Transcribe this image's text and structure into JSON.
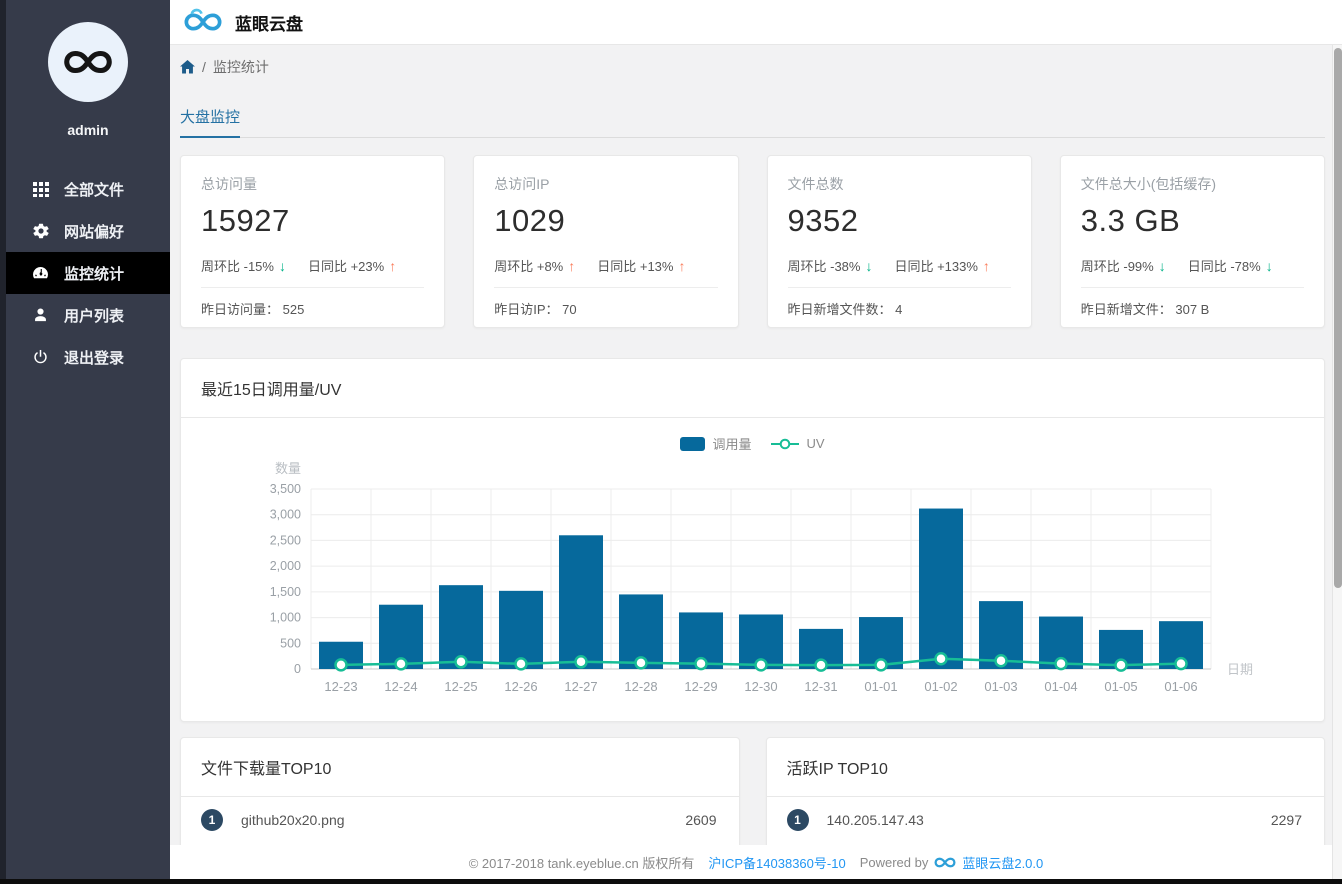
{
  "app": {
    "title": "蓝眼云盘"
  },
  "sidebar": {
    "username": "admin",
    "items": [
      {
        "id": "all-files",
        "label": "全部文件",
        "icon": "grid-icon",
        "active": false
      },
      {
        "id": "preferences",
        "label": "网站偏好",
        "icon": "gear-icon",
        "active": false
      },
      {
        "id": "monitoring",
        "label": "监控统计",
        "icon": "gauge-icon",
        "active": true
      },
      {
        "id": "users",
        "label": "用户列表",
        "icon": "user-icon",
        "active": false
      },
      {
        "id": "logout",
        "label": "退出登录",
        "icon": "power-icon",
        "active": false
      }
    ]
  },
  "breadcrumb": {
    "separator": "/",
    "current": "监控统计"
  },
  "tabs": [
    {
      "label": "大盘监控",
      "active": true
    }
  ],
  "stat_cards": [
    {
      "label": "总访问量",
      "value": "15927",
      "trends": [
        {
          "text": "周环比 -15%",
          "dir": "down"
        },
        {
          "text": "日同比 +23%",
          "dir": "up"
        }
      ],
      "bottom_label": "昨日访问量：",
      "bottom_value": "525"
    },
    {
      "label": "总访问IP",
      "value": "1029",
      "trends": [
        {
          "text": "周环比 +8%",
          "dir": "up"
        },
        {
          "text": "日同比 +13%",
          "dir": "up"
        }
      ],
      "bottom_label": "昨日访IP：",
      "bottom_value": "70"
    },
    {
      "label": "文件总数",
      "value": "9352",
      "trends": [
        {
          "text": "周环比 -38%",
          "dir": "down"
        },
        {
          "text": "日同比 +133%",
          "dir": "up"
        }
      ],
      "bottom_label": "昨日新增文件数：",
      "bottom_value": "4"
    },
    {
      "label": "文件总大小(包括缓存)",
      "value": "3.3 GB",
      "trends": [
        {
          "text": "周环比 -99%",
          "dir": "down"
        },
        {
          "text": "日同比 -78%",
          "dir": "down"
        }
      ],
      "bottom_label": "昨日新增文件：",
      "bottom_value": "307 B"
    }
  ],
  "chart_card": {
    "title": "最近15日调用量/UV"
  },
  "chart_data": {
    "type": "bar",
    "title": "最近15日调用量/UV",
    "xlabel": "日期",
    "ylabel": "数量",
    "ylim": [
      0,
      3500
    ],
    "yticks": [
      0,
      500,
      1000,
      1500,
      2000,
      2500,
      3000,
      3500
    ],
    "grid": true,
    "legend_position": "top-center",
    "categories": [
      "12-23",
      "12-24",
      "12-25",
      "12-26",
      "12-27",
      "12-28",
      "12-29",
      "12-30",
      "12-31",
      "01-01",
      "01-02",
      "01-03",
      "01-04",
      "01-05",
      "01-06"
    ],
    "series": [
      {
        "name": "调用量",
        "type": "bar",
        "color": "#06699c",
        "values": [
          530,
          1250,
          1630,
          1520,
          2600,
          1450,
          1100,
          1060,
          780,
          1010,
          3120,
          1320,
          1020,
          760,
          930
        ]
      },
      {
        "name": "UV",
        "type": "line",
        "color": "#17bd96",
        "values": [
          80,
          100,
          140,
          100,
          140,
          120,
          105,
          80,
          75,
          80,
          200,
          160,
          105,
          75,
          105
        ]
      }
    ]
  },
  "top_lists": [
    {
      "title": "文件下载量TOP10",
      "items": [
        {
          "rank": "1",
          "name": "github20x20.png",
          "value": "2609"
        }
      ]
    },
    {
      "title": "活跃IP TOP10",
      "items": [
        {
          "rank": "1",
          "name": "140.205.147.43",
          "value": "2297"
        }
      ]
    }
  ],
  "footer": {
    "copyright": "© 2017-2018 tank.eyeblue.cn 版权所有",
    "icp": "沪ICP备14038360号-10",
    "powered_by": "Powered by",
    "brand_version": "蓝眼云盘2.0.0"
  },
  "colors": {
    "bar": "#06699c",
    "line": "#17bd96",
    "up_arrow": "#fa7c5a",
    "down_arrow": "#00b287",
    "tab_accent": "#2471a3",
    "link": "#2196f3",
    "badge": "#2c4963",
    "sidebar_bg": "#363b4a",
    "sidebar_active_bg": "#000000",
    "content_bg": "#f2f2f3"
  }
}
